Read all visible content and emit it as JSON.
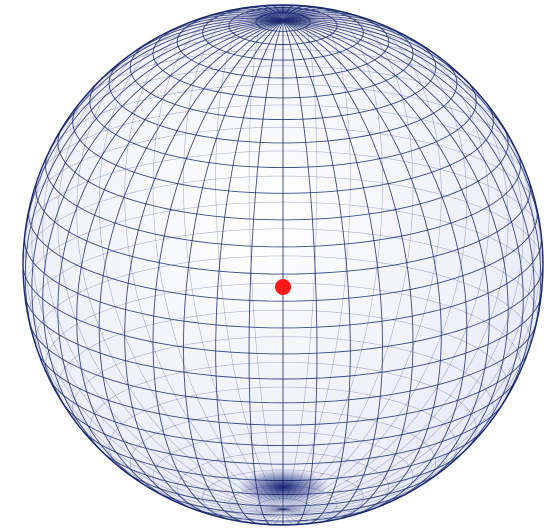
{
  "figure": {
    "background": "#ffffff",
    "wire_color": "#1c2a6e",
    "sphere_fill": "#eef0fb",
    "pole_color": "#0c1a6e",
    "center_point_color": "#ff1a1a",
    "meridians": 48,
    "parallels": 30,
    "tilt_degrees": 20
  }
}
